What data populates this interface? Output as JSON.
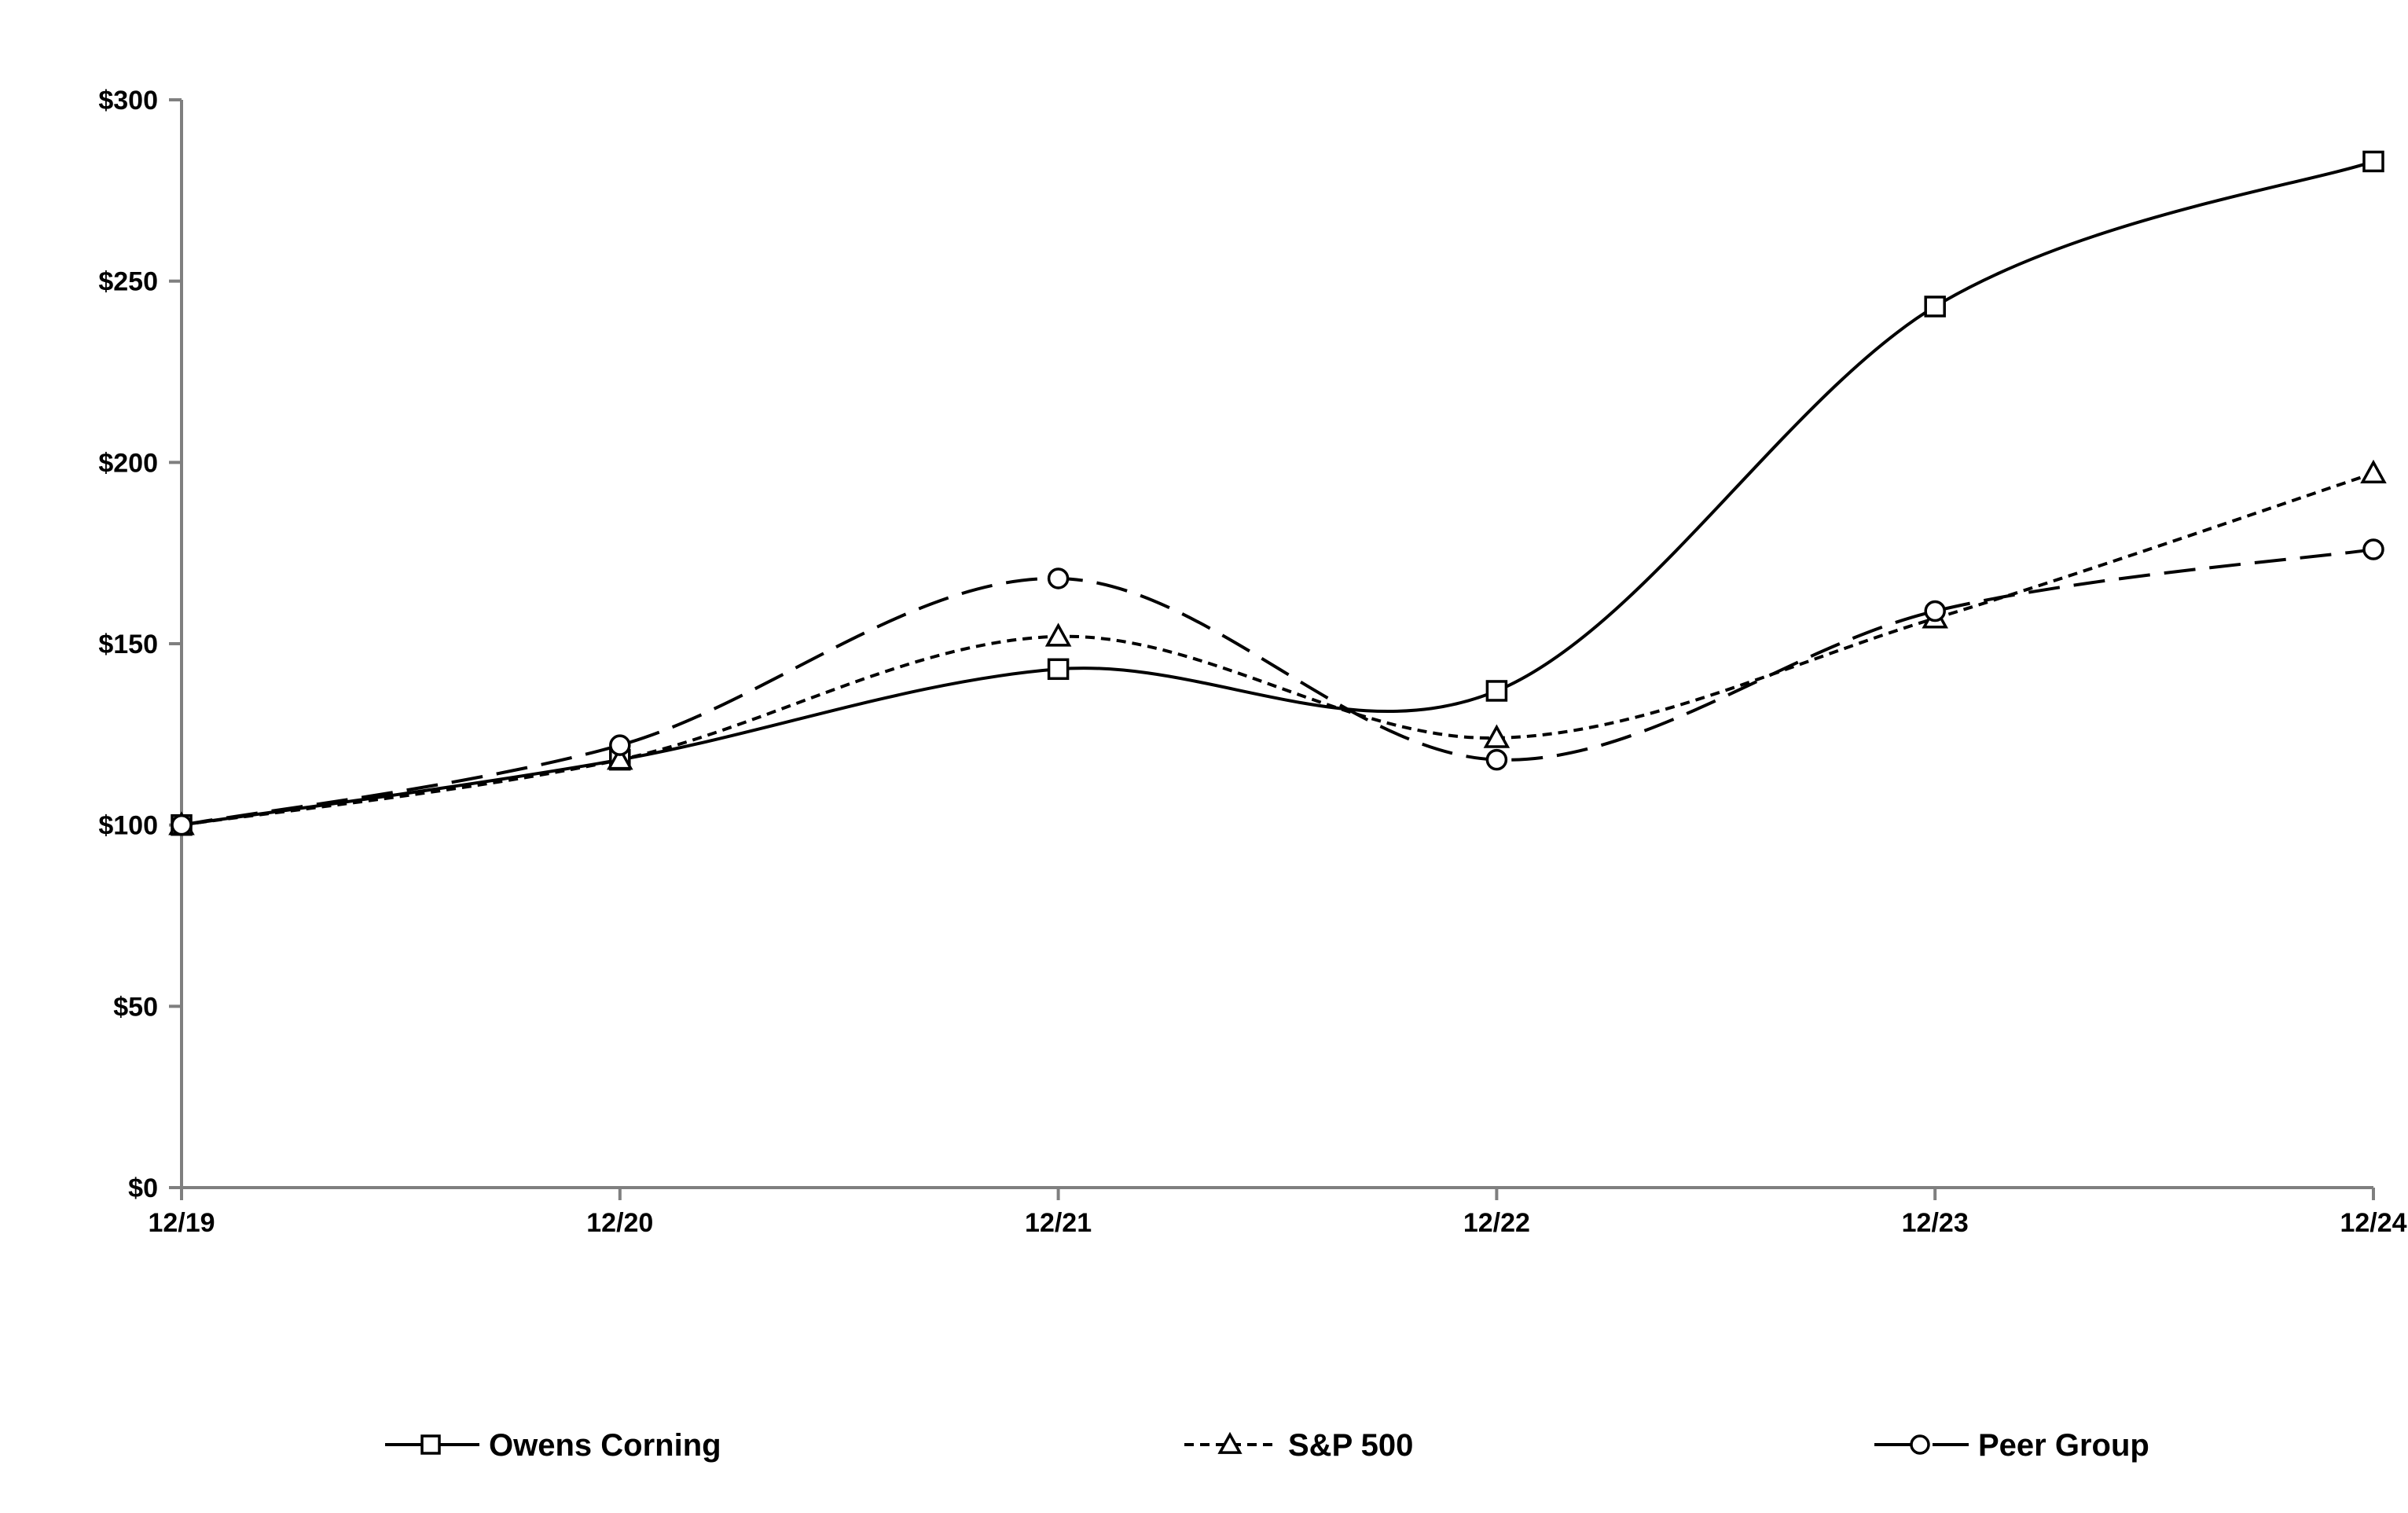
{
  "chart_data": {
    "type": "line",
    "title": "",
    "xlabel": "",
    "ylabel": "",
    "categories": [
      "12/19",
      "12/20",
      "12/21",
      "12/22",
      "12/23",
      "12/24"
    ],
    "y_ticks": [
      "$0",
      "$50",
      "$100",
      "$150",
      "$200",
      "$250",
      "$300"
    ],
    "y_tick_values": [
      0,
      50,
      100,
      150,
      200,
      250,
      300
    ],
    "ylim": [
      0,
      300
    ],
    "grid": false,
    "legend_position": "bottom",
    "series": [
      {
        "name": "Owens Corning",
        "values": [
          100,
          118,
          143,
          137,
          243,
          283
        ],
        "marker": "square",
        "dash": "solid",
        "color": "#000000"
      },
      {
        "name": "S&P 500",
        "values": [
          100,
          118,
          152,
          124,
          157,
          197
        ],
        "marker": "triangle",
        "dash": "short-dash",
        "color": "#000000"
      },
      {
        "name": "Peer Group",
        "values": [
          100,
          122,
          168,
          118,
          159,
          176
        ],
        "marker": "circle",
        "dash": "long-dash",
        "color": "#000000"
      }
    ]
  }
}
